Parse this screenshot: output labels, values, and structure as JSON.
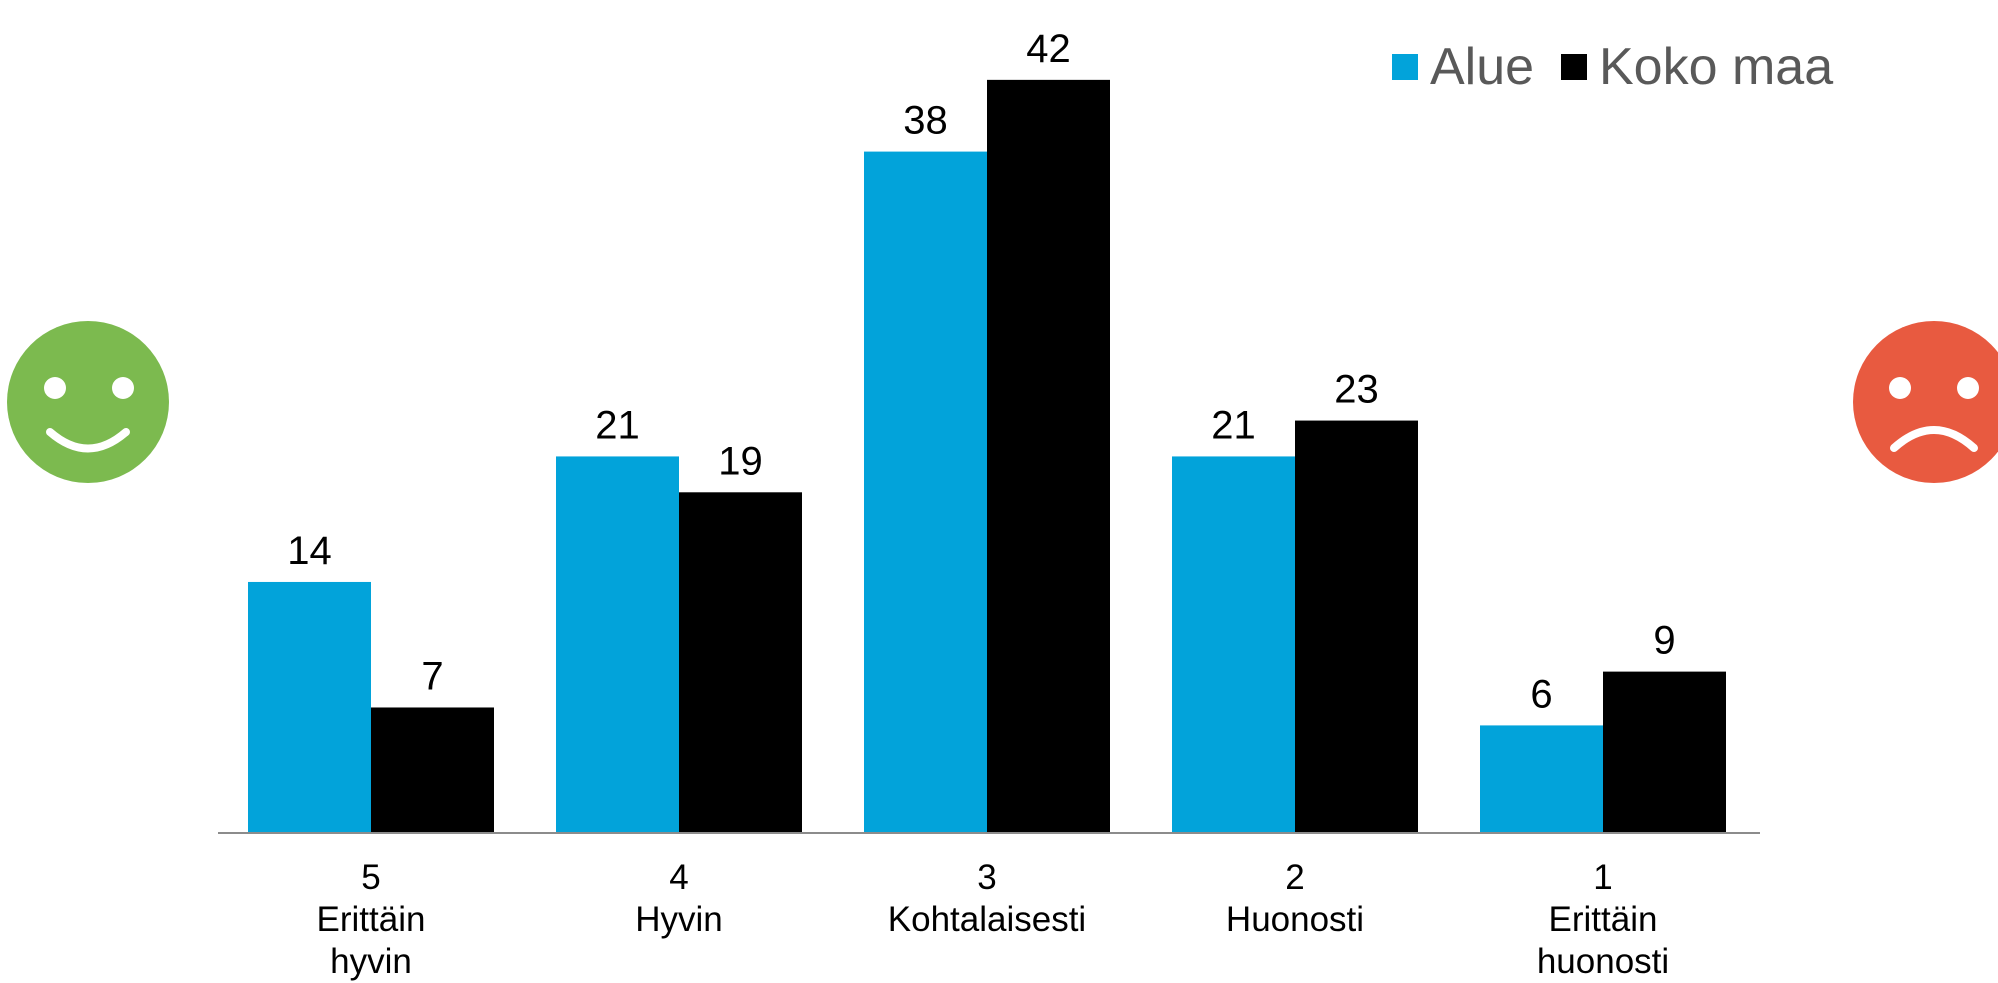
{
  "chart_data": {
    "type": "bar",
    "categories": [
      [
        "5",
        "Erittäin",
        "hyvin"
      ],
      [
        "4",
        "Hyvin"
      ],
      [
        "3",
        "Kohtalaisesti"
      ],
      [
        "2",
        "Huonosti"
      ],
      [
        "1",
        "Erittäin",
        "huonosti"
      ]
    ],
    "series": [
      {
        "name": "Alue",
        "color": "#02A3DA",
        "values": [
          14,
          21,
          38,
          21,
          6
        ]
      },
      {
        "name": "Koko maa",
        "color": "#000000",
        "values": [
          7,
          19,
          42,
          23,
          9
        ]
      }
    ],
    "ylim": [
      0,
      44
    ],
    "grid": false,
    "legend_position": "top-right",
    "data_labels": true
  },
  "decorations": {
    "left_icon": {
      "name": "smiley-happy-icon",
      "color": "#7CBA4F"
    },
    "right_icon": {
      "name": "smiley-sad-icon",
      "color": "#E85A40"
    }
  }
}
